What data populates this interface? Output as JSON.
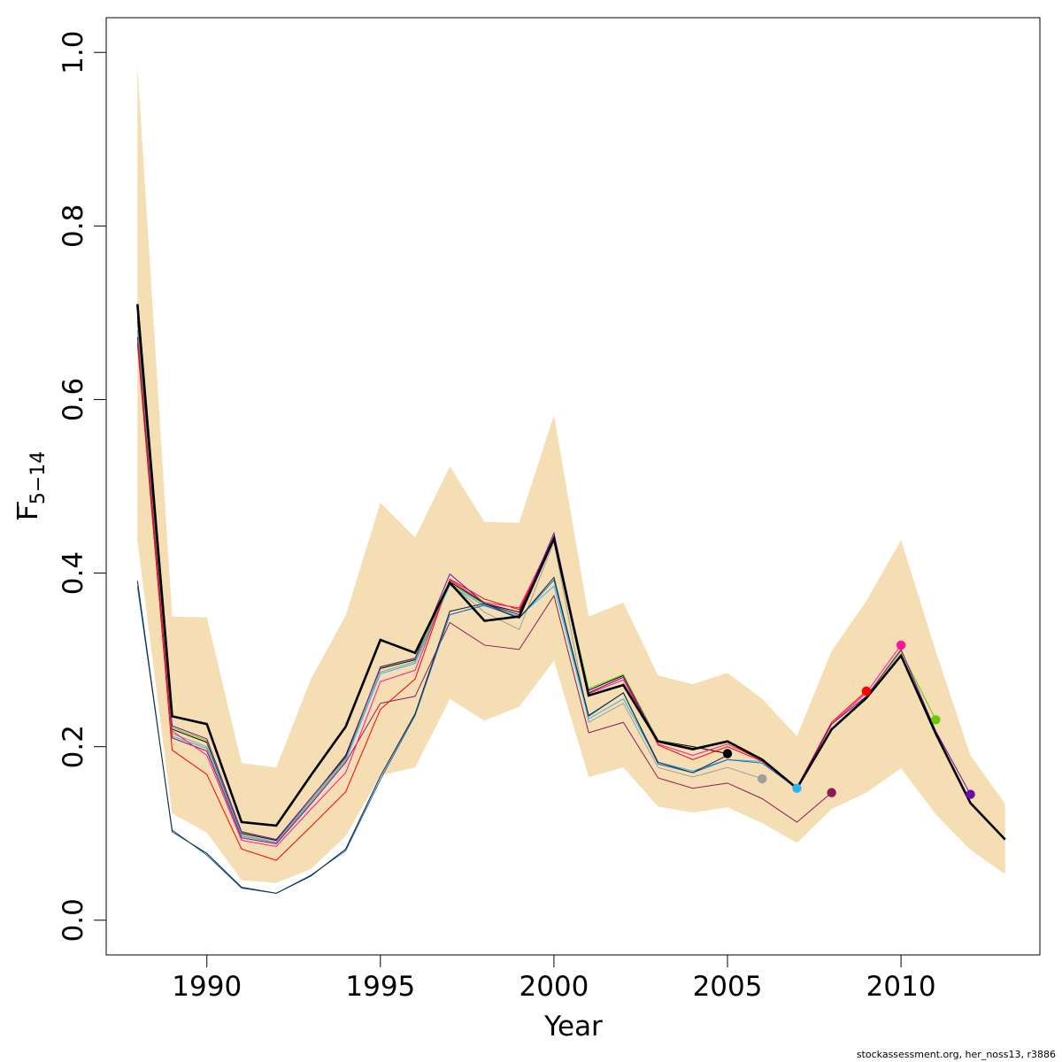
{
  "chart_data": {
    "type": "line",
    "xlabel": "Year",
    "ylabel_main": "F",
    "ylabel_sub": "5−14",
    "xlim": [
      1987.1,
      2014.0
    ],
    "ylim": [
      -0.04,
      1.04
    ],
    "x_ticks": [
      1990,
      1995,
      2000,
      2005,
      2010
    ],
    "y_ticks": [
      0.0,
      0.2,
      0.4,
      0.6,
      0.8,
      1.0
    ],
    "y_tick_labels": [
      "0.0",
      "0.2",
      "0.4",
      "0.6",
      "0.8",
      "1.0"
    ],
    "band_color": "#F5DEB3",
    "band": {
      "x": [
        1988,
        1989,
        1990,
        1991,
        1992,
        1993,
        1994,
        1995,
        1996,
        1997,
        1998,
        1999,
        2000,
        2001,
        2002,
        2003,
        2004,
        2005,
        2006,
        2007,
        2008,
        2009,
        2010,
        2011,
        2012,
        2013
      ],
      "upper": [
        0.985,
        0.35,
        0.349,
        0.181,
        0.176,
        0.278,
        0.351,
        0.481,
        0.441,
        0.523,
        0.459,
        0.458,
        0.582,
        0.35,
        0.366,
        0.282,
        0.272,
        0.285,
        0.255,
        0.212,
        0.31,
        0.368,
        0.438,
        0.31,
        0.19,
        0.134
      ],
      "lower": [
        0.437,
        0.123,
        0.101,
        0.046,
        0.043,
        0.059,
        0.097,
        0.167,
        0.176,
        0.255,
        0.23,
        0.246,
        0.299,
        0.165,
        0.176,
        0.131,
        0.124,
        0.13,
        0.112,
        0.089,
        0.128,
        0.147,
        0.175,
        0.122,
        0.081,
        0.053
      ]
    },
    "retro_series": [
      {
        "color": "#000000",
        "x": [
          1988,
          1989,
          1990,
          1991,
          1992,
          1993,
          1994,
          1995,
          1996,
          1997,
          1998,
          1999,
          2000,
          2001,
          2002,
          2003,
          2004,
          2005
        ],
        "values": [
          0.7,
          0.22,
          0.205,
          0.1,
          0.092,
          0.14,
          0.19,
          0.29,
          0.3,
          0.39,
          0.365,
          0.355,
          0.44,
          0.265,
          0.282,
          0.207,
          0.2,
          0.192
        ]
      },
      {
        "color": "#9E9E9E",
        "x": [
          1988,
          1989,
          1990,
          1991,
          1992,
          1993,
          1994,
          1995,
          1996,
          1997,
          1998,
          1999,
          2000,
          2001,
          2002,
          2003,
          2004,
          2005,
          2006
        ],
        "values": [
          0.69,
          0.215,
          0.2,
          0.098,
          0.09,
          0.138,
          0.186,
          0.286,
          0.298,
          0.388,
          0.355,
          0.335,
          0.436,
          0.228,
          0.25,
          0.176,
          0.165,
          0.176,
          0.163
        ]
      },
      {
        "color": "#29B6F6",
        "x": [
          1988,
          1989,
          1990,
          1991,
          1992,
          1993,
          1994,
          1995,
          1996,
          1997,
          1998,
          1999,
          2000,
          2001,
          2002,
          2003,
          2004,
          2005,
          2006,
          2007
        ],
        "values": [
          0.68,
          0.212,
          0.198,
          0.097,
          0.089,
          0.136,
          0.184,
          0.284,
          0.296,
          0.386,
          0.362,
          0.35,
          0.385,
          0.232,
          0.255,
          0.182,
          0.172,
          0.185,
          0.183,
          0.152
        ]
      },
      {
        "color": "#8B1A5B",
        "x": [
          1988,
          1989,
          1990,
          1991,
          1992,
          1993,
          1994,
          1995,
          1996,
          1997,
          1998,
          1999,
          2000,
          2001,
          2002,
          2003,
          2004,
          2005,
          2006,
          2007,
          2008
        ],
        "values": [
          0.672,
          0.21,
          0.195,
          0.095,
          0.088,
          0.134,
          0.182,
          0.25,
          0.258,
          0.343,
          0.317,
          0.312,
          0.374,
          0.216,
          0.228,
          0.164,
          0.152,
          0.158,
          0.14,
          0.113,
          0.147
        ]
      },
      {
        "color": "#FF0000",
        "x": [
          1988,
          1989,
          1990,
          1991,
          1992,
          1993,
          1994,
          1995,
          1996,
          1997,
          1998,
          1999,
          2000,
          2001,
          2002,
          2003,
          2004,
          2005,
          2006,
          2007,
          2008,
          2009
        ],
        "values": [
          0.665,
          0.196,
          0.168,
          0.082,
          0.069,
          0.108,
          0.148,
          0.243,
          0.278,
          0.393,
          0.37,
          0.358,
          0.438,
          0.262,
          0.28,
          0.202,
          0.185,
          0.2,
          0.183,
          0.153,
          0.228,
          0.264
        ]
      },
      {
        "color": "#FF1493",
        "x": [
          1988,
          1989,
          1990,
          1991,
          1992,
          1993,
          1994,
          1995,
          1996,
          1997,
          1998,
          1999,
          2000,
          2001,
          2002,
          2003,
          2004,
          2005,
          2006,
          2007,
          2008,
          2009,
          2010
        ],
        "values": [
          0.69,
          0.218,
          0.19,
          0.092,
          0.085,
          0.128,
          0.17,
          0.275,
          0.288,
          0.392,
          0.366,
          0.36,
          0.442,
          0.261,
          0.277,
          0.203,
          0.19,
          0.203,
          0.184,
          0.152,
          0.226,
          0.262,
          0.317
        ]
      },
      {
        "color": "#66CC00",
        "x": [
          1988,
          1989,
          1990,
          1991,
          1992,
          1993,
          1994,
          1995,
          1996,
          1997,
          1998,
          1999,
          2000,
          2001,
          2002,
          2003,
          2004,
          2005,
          2006,
          2007,
          2008,
          2009,
          2010,
          2011
        ],
        "values": [
          0.69,
          0.222,
          0.207,
          0.101,
          0.093,
          0.14,
          0.187,
          0.291,
          0.301,
          0.388,
          0.364,
          0.352,
          0.44,
          0.267,
          0.283,
          0.207,
          0.198,
          0.207,
          0.185,
          0.152,
          0.22,
          0.258,
          0.31,
          0.231
        ]
      },
      {
        "color": "#6A0DAD",
        "x": [
          1988,
          1989,
          1990,
          1991,
          1992,
          1993,
          1994,
          1995,
          1996,
          1997,
          1998,
          1999,
          2000,
          2001,
          2002,
          2003,
          2004,
          2005,
          2006,
          2007,
          2008,
          2009,
          2010,
          2011,
          2012
        ],
        "values": [
          0.695,
          0.224,
          0.209,
          0.102,
          0.093,
          0.141,
          0.188,
          0.292,
          0.302,
          0.399,
          0.365,
          0.352,
          0.446,
          0.262,
          0.28,
          0.206,
          0.198,
          0.206,
          0.186,
          0.153,
          0.226,
          0.258,
          0.312,
          0.218,
          0.145
        ]
      },
      {
        "color": "#1565C0",
        "x": [
          1988,
          1989,
          1990,
          1991,
          1992,
          1993,
          1994,
          1995,
          1996,
          1997,
          1998,
          1999,
          2000,
          2001,
          2002,
          2003,
          2004,
          2005,
          2006,
          2007
        ],
        "values": [
          0.385,
          0.104,
          0.075,
          0.037,
          0.031,
          0.052,
          0.08,
          0.162,
          0.236,
          0.352,
          0.363,
          0.348,
          0.392,
          0.235,
          0.262,
          0.18,
          0.17,
          0.185,
          0.181,
          0.152
        ]
      },
      {
        "color": "#102A33",
        "x": [
          1988,
          1989,
          1990,
          1991,
          1992,
          1993,
          1994,
          1995,
          1996,
          1997,
          1998,
          1999,
          2000,
          2001,
          2002,
          2003,
          2004,
          2005
        ],
        "values": [
          0.391,
          0.102,
          0.077,
          0.038,
          0.031,
          0.051,
          0.082,
          0.166,
          0.238,
          0.356,
          0.365,
          0.348,
          0.395,
          0.236,
          0.262,
          0.182,
          0.17,
          0.19
        ]
      }
    ],
    "endpoints": [
      {
        "x": 2005,
        "value": 0.192,
        "color": "#000000"
      },
      {
        "x": 2006,
        "value": 0.163,
        "color": "#9E9E9E"
      },
      {
        "x": 2007,
        "value": 0.152,
        "color": "#29B6F6"
      },
      {
        "x": 2008,
        "value": 0.147,
        "color": "#8B1A5B"
      },
      {
        "x": 2009,
        "value": 0.264,
        "color": "#FF0000"
      },
      {
        "x": 2010,
        "value": 0.317,
        "color": "#FF1493"
      },
      {
        "x": 2011,
        "value": 0.231,
        "color": "#66CC00"
      },
      {
        "x": 2012,
        "value": 0.145,
        "color": "#6A0DAD"
      }
    ],
    "main_series": {
      "color": "#000000",
      "x": [
        1988,
        1989,
        1990,
        1991,
        1992,
        1993,
        1994,
        1995,
        1996,
        1997,
        1998,
        1999,
        2000,
        2001,
        2002,
        2003,
        2004,
        2005,
        2006,
        2007,
        2008,
        2009,
        2010,
        2011,
        2012,
        2013
      ],
      "values": [
        0.71,
        0.235,
        0.226,
        0.113,
        0.109,
        0.167,
        0.223,
        0.323,
        0.308,
        0.389,
        0.345,
        0.35,
        0.44,
        0.259,
        0.271,
        0.206,
        0.197,
        0.206,
        0.185,
        0.152,
        0.22,
        0.256,
        0.305,
        0.215,
        0.135,
        0.093
      ]
    }
  },
  "footer": "stockassessment.org, her_noss13, r3886"
}
